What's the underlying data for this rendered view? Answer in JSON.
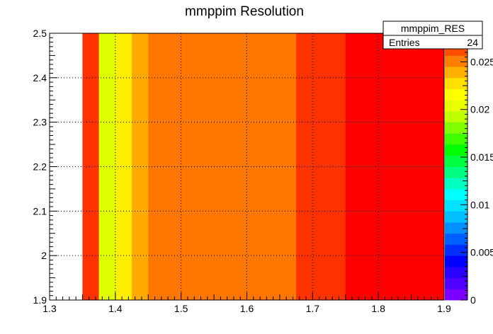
{
  "chart_data": {
    "type": "heatmap",
    "title": "mmppim Resolution",
    "xlabel": "",
    "ylabel": "",
    "xlim": [
      1.3,
      1.9
    ],
    "ylim": [
      1.9,
      2.5
    ],
    "zlim": [
      0,
      0.028
    ],
    "grid": true,
    "x_ticks": [
      "1.3",
      "1.4",
      "1.5",
      "1.6",
      "1.7",
      "1.8",
      "1.9"
    ],
    "y_ticks": [
      "1.9",
      "2",
      "2.1",
      "2.2",
      "2.3",
      "2.4",
      "2.5"
    ],
    "z_ticks": [
      "0",
      "0.005",
      "0.01",
      "0.015",
      "0.02",
      "0.025"
    ],
    "palette": [
      "#7a00ff",
      "#5000ff",
      "#2a00ff",
      "#0000ff",
      "#0030ff",
      "#0060ff",
      "#0090ff",
      "#00c0ff",
      "#00e0ff",
      "#00ffff",
      "#00ffc0",
      "#00ff80",
      "#00ff40",
      "#00ff00",
      "#40ff00",
      "#80ff00",
      "#c0ff00",
      "#e8ff00",
      "#ffff00",
      "#ffe000",
      "#ffb000",
      "#ff8000",
      "#ff5000",
      "#ff2000"
    ],
    "cells": [
      {
        "x0": 1.35,
        "x1": 1.375,
        "y0": 1.9,
        "y1": 2.5,
        "z": 0.0275,
        "color": "#ff3300"
      },
      {
        "x0": 1.375,
        "x1": 1.4,
        "y0": 1.9,
        "y1": 2.5,
        "z": 0.0215,
        "color": "#ddff00"
      },
      {
        "x0": 1.4,
        "x1": 1.425,
        "y0": 1.9,
        "y1": 2.5,
        "z": 0.0225,
        "color": "#ffee00"
      },
      {
        "x0": 1.425,
        "x1": 1.45,
        "y0": 1.9,
        "y1": 2.5,
        "z": 0.0245,
        "color": "#ffaa00"
      },
      {
        "x0": 1.45,
        "x1": 1.475,
        "y0": 1.9,
        "y1": 2.5,
        "z": 0.0255,
        "color": "#ff7700"
      },
      {
        "x0": 1.475,
        "x1": 1.5,
        "y0": 1.9,
        "y1": 2.5,
        "z": 0.0255,
        "color": "#ff7700"
      },
      {
        "x0": 1.5,
        "x1": 1.525,
        "y0": 1.9,
        "y1": 2.5,
        "z": 0.0255,
        "color": "#ff7700"
      },
      {
        "x0": 1.525,
        "x1": 1.55,
        "y0": 1.9,
        "y1": 2.5,
        "z": 0.0255,
        "color": "#ff7700"
      },
      {
        "x0": 1.55,
        "x1": 1.575,
        "y0": 1.9,
        "y1": 2.5,
        "z": 0.0255,
        "color": "#ff7700"
      },
      {
        "x0": 1.575,
        "x1": 1.6,
        "y0": 1.9,
        "y1": 2.5,
        "z": 0.0255,
        "color": "#ff7700"
      },
      {
        "x0": 1.6,
        "x1": 1.625,
        "y0": 1.9,
        "y1": 2.5,
        "z": 0.0255,
        "color": "#ff7700"
      },
      {
        "x0": 1.625,
        "x1": 1.65,
        "y0": 1.9,
        "y1": 2.5,
        "z": 0.0255,
        "color": "#ff7700"
      },
      {
        "x0": 1.65,
        "x1": 1.675,
        "y0": 1.9,
        "y1": 2.5,
        "z": 0.0255,
        "color": "#ff7700"
      },
      {
        "x0": 1.675,
        "x1": 1.7,
        "y0": 1.9,
        "y1": 2.5,
        "z": 0.0275,
        "color": "#ff3300"
      },
      {
        "x0": 1.7,
        "x1": 1.725,
        "y0": 1.9,
        "y1": 2.5,
        "z": 0.0275,
        "color": "#ff3300"
      },
      {
        "x0": 1.725,
        "x1": 1.75,
        "y0": 1.9,
        "y1": 2.5,
        "z": 0.0275,
        "color": "#ff3300"
      },
      {
        "x0": 1.75,
        "x1": 1.775,
        "y0": 1.9,
        "y1": 2.5,
        "z": 0.0285,
        "color": "#ff0000"
      },
      {
        "x0": 1.775,
        "x1": 1.8,
        "y0": 1.9,
        "y1": 2.5,
        "z": 0.0285,
        "color": "#ff0000"
      },
      {
        "x0": 1.8,
        "x1": 1.825,
        "y0": 1.9,
        "y1": 2.5,
        "z": 0.0285,
        "color": "#ff0000"
      },
      {
        "x0": 1.825,
        "x1": 1.85,
        "y0": 1.9,
        "y1": 2.5,
        "z": 0.0285,
        "color": "#ff0000"
      },
      {
        "x0": 1.85,
        "x1": 1.875,
        "y0": 1.9,
        "y1": 2.5,
        "z": 0.0285,
        "color": "#ff0000"
      },
      {
        "x0": 1.875,
        "x1": 1.9,
        "y0": 1.9,
        "y1": 2.5,
        "z": 0.0285,
        "color": "#ff0000"
      }
    ]
  },
  "stats": {
    "name": "mmppim_RES",
    "entries_label": "Entries",
    "entries_value": "24"
  }
}
